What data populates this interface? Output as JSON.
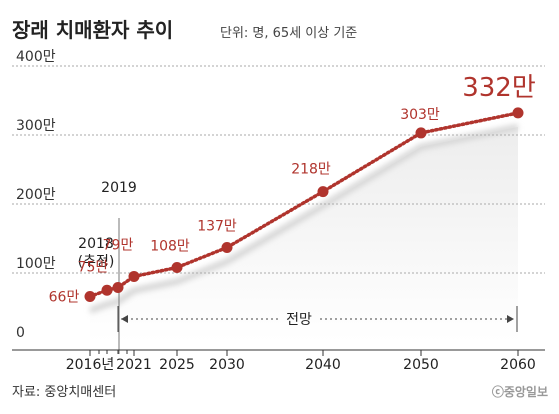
{
  "header": {
    "title": "장래 치매환자 추이",
    "unit": "단위: 명, 65세 이상 기준"
  },
  "chart_data": {
    "type": "line",
    "title": "장래 치매환자 추이",
    "subtitle": "단위: 명, 65세 이상 기준",
    "x": [
      2016,
      2018,
      2019,
      2021,
      2025,
      2030,
      2040,
      2050,
      2060
    ],
    "series": [
      {
        "values": [
          66,
          75,
          79,
          95,
          108,
          137,
          218,
          303,
          332
        ]
      }
    ],
    "data_labels": [
      "66만",
      "75만",
      "79만",
      "",
      "108만",
      "137만",
      "218만",
      "303만",
      "332만"
    ],
    "y_ticks": [
      {
        "value": 0,
        "label": "0"
      },
      {
        "value": 100,
        "label": "100만"
      },
      {
        "value": 200,
        "label": "200만"
      },
      {
        "value": 300,
        "label": "300만"
      },
      {
        "value": 400,
        "label": "400만"
      }
    ],
    "x_ticks": [
      {
        "value": 2016,
        "label": "2016년"
      },
      {
        "value": 2021,
        "label": "2021"
      },
      {
        "value": 2025,
        "label": "2025"
      },
      {
        "value": 2030,
        "label": "2030"
      },
      {
        "value": 2040,
        "label": "2040"
      },
      {
        "value": 2050,
        "label": "2050"
      },
      {
        "value": 2060,
        "label": "2060"
      }
    ],
    "ylim": [
      0,
      400
    ],
    "xlabel": "",
    "ylabel": "",
    "grid": true,
    "annotations": {
      "year_2018": "2018",
      "estimate": "(추정)",
      "year_2019": "2019",
      "forecast": "전망"
    },
    "colors": {
      "line": "#b0342d",
      "marker": "#b0342d",
      "shadow": "#d4d4d4"
    }
  },
  "footer": {
    "source": "자료: 중앙치매센터",
    "credit": "ⓒ중앙일보"
  }
}
